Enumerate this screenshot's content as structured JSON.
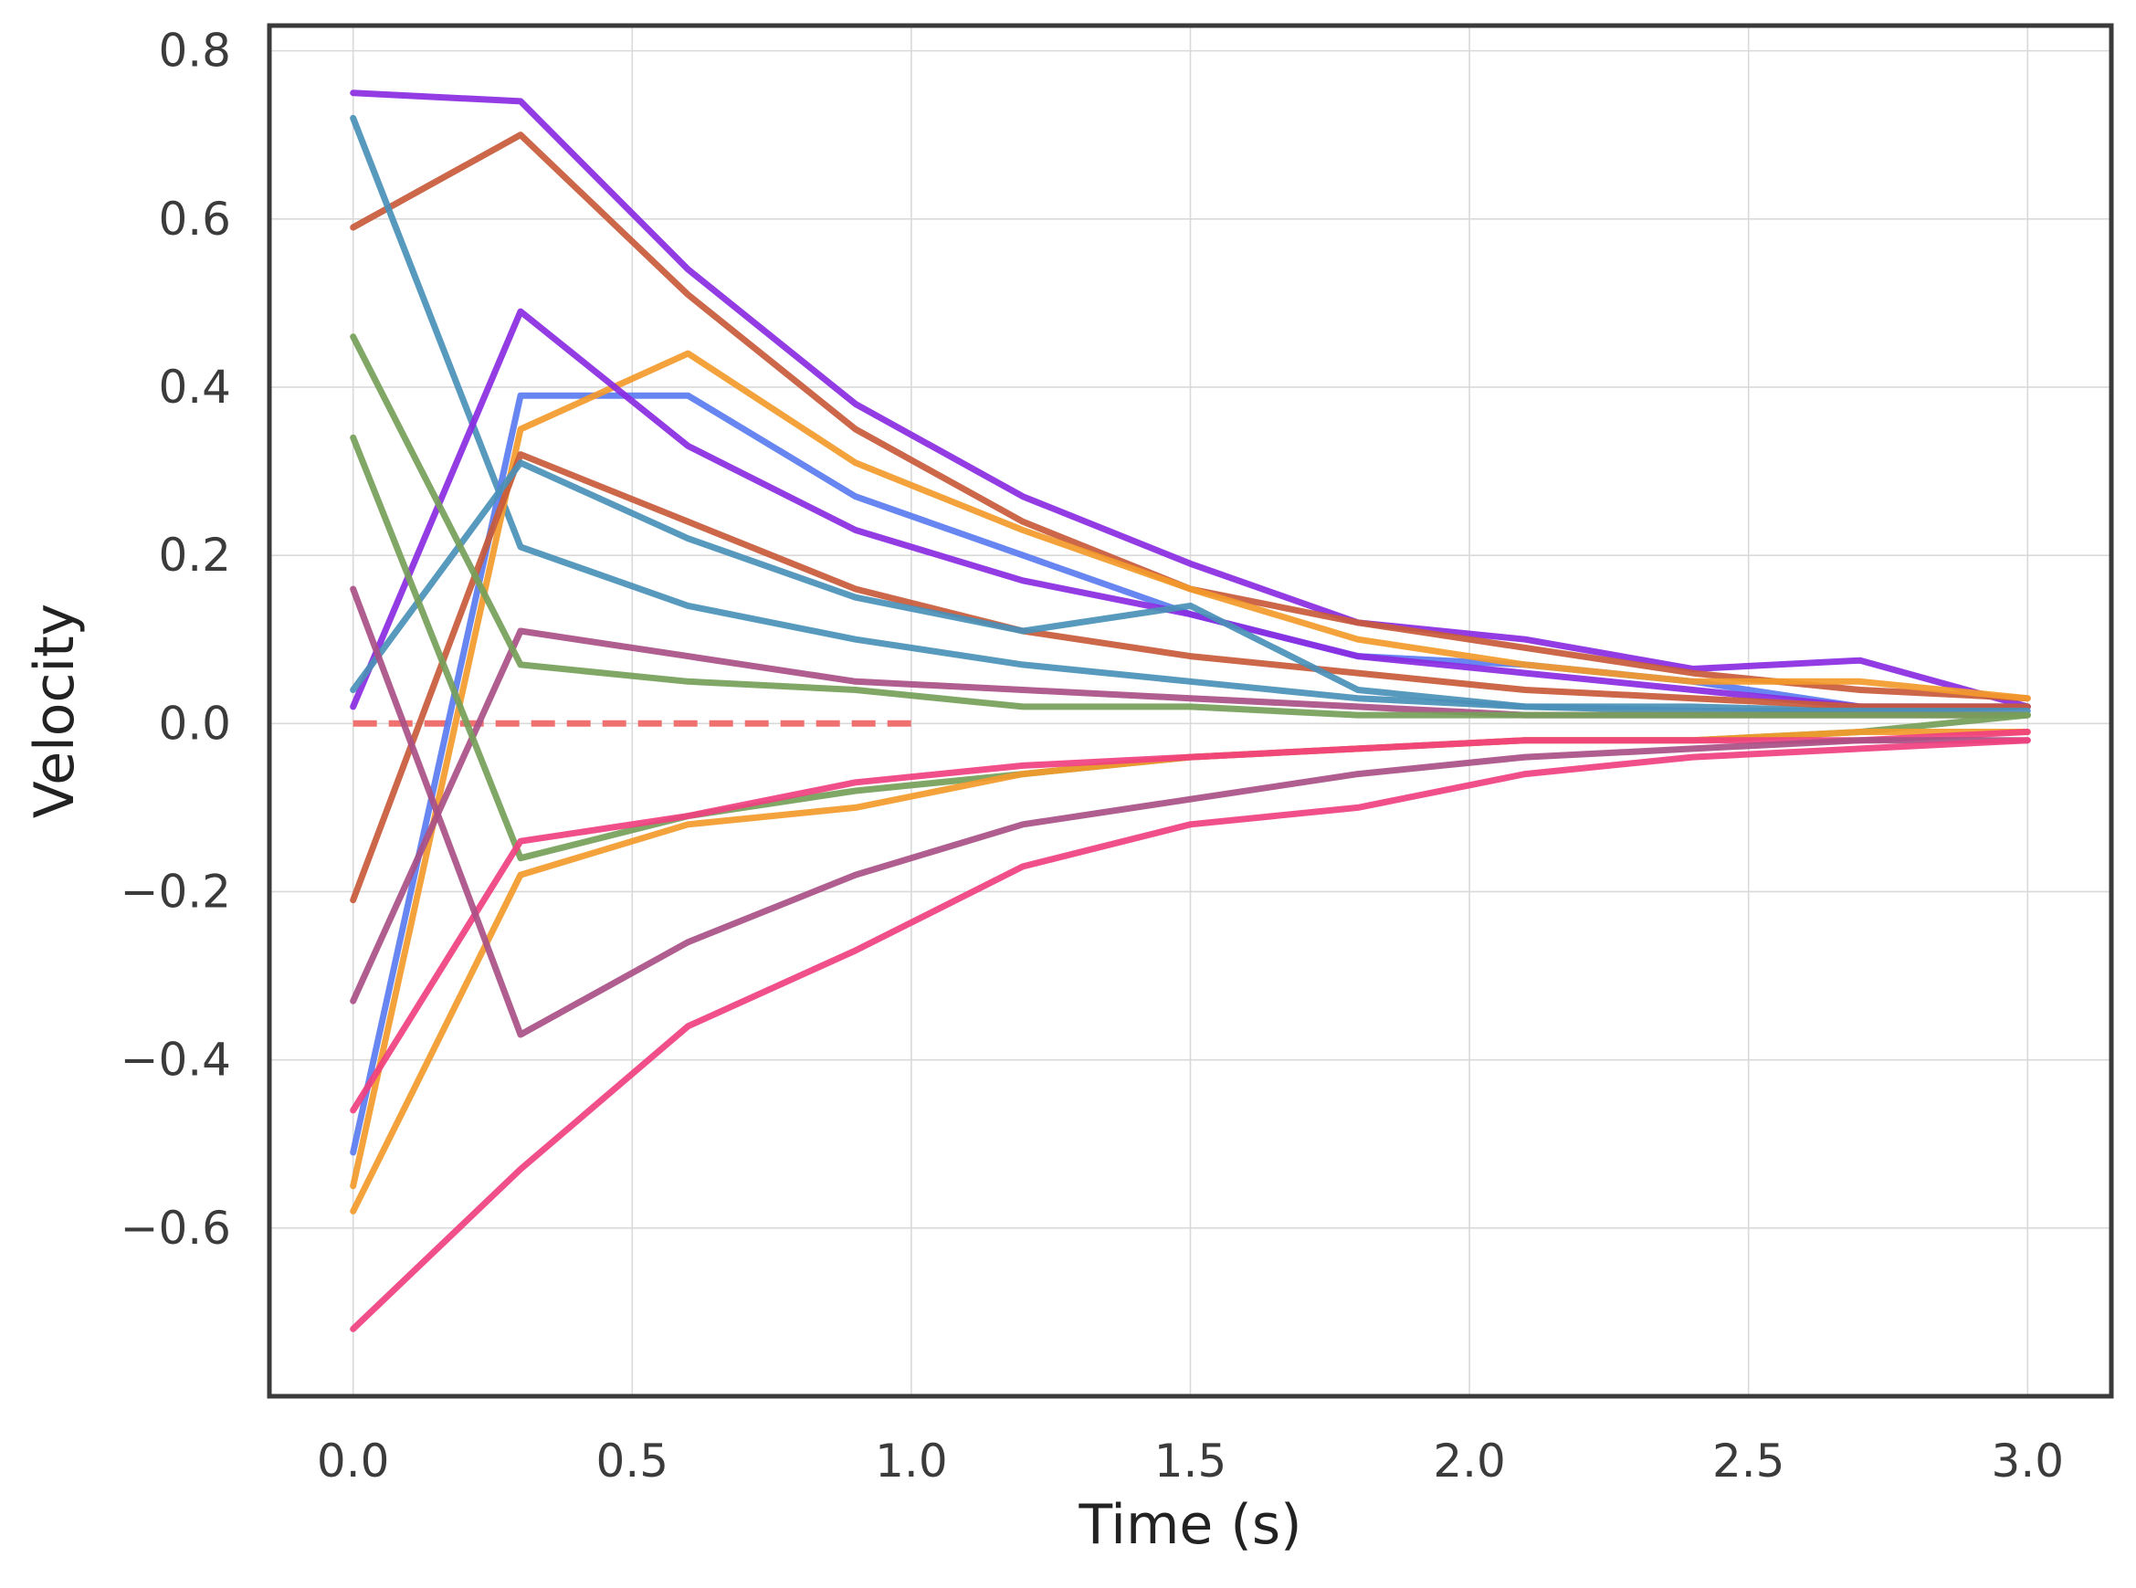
{
  "chart_data": {
    "type": "line",
    "title": "",
    "xlabel": "Time (s)",
    "ylabel": "Velocity",
    "xlim": [
      -0.15,
      3.15
    ],
    "ylim": [
      -0.8,
      0.83
    ],
    "xticks": [
      0.0,
      0.5,
      1.0,
      1.5,
      2.0,
      2.5,
      3.0
    ],
    "xtick_labels": [
      "0.0",
      "0.5",
      "1.0",
      "1.5",
      "2.0",
      "2.5",
      "3.0"
    ],
    "yticks": [
      -0.6,
      -0.4,
      -0.2,
      0.0,
      0.2,
      0.4,
      0.6,
      0.8
    ],
    "ytick_labels": [
      "−0.6",
      "−0.4",
      "−0.2",
      "0.0",
      "0.2",
      "0.4",
      "0.6",
      "0.8"
    ],
    "grid": true,
    "legend": "none",
    "x": [
      0.0,
      0.3,
      0.6,
      0.9,
      1.2,
      1.5,
      1.8,
      2.1,
      2.4,
      2.7,
      3.0
    ],
    "reference_line": {
      "x": [
        0.0,
        1.0
      ],
      "y": [
        0.0,
        0.0
      ],
      "color": "#f07070",
      "style": "dashed"
    },
    "series": [
      {
        "color": "#8a2be2",
        "values": [
          0.75,
          0.74,
          0.54,
          0.38,
          0.27,
          0.19,
          0.12,
          0.1,
          0.065,
          0.075,
          0.02
        ]
      },
      {
        "color": "#c85a3a",
        "values": [
          0.59,
          0.7,
          0.51,
          0.35,
          0.24,
          0.16,
          0.12,
          0.09,
          0.06,
          0.04,
          0.03
        ]
      },
      {
        "color": "#4a90b8",
        "values": [
          0.72,
          0.21,
          0.14,
          0.1,
          0.07,
          0.05,
          0.03,
          0.02,
          0.02,
          0.015,
          0.02
        ]
      },
      {
        "color": "#5b7cf0",
        "values": [
          -0.51,
          0.39,
          0.39,
          0.27,
          0.2,
          0.13,
          0.08,
          0.07,
          0.05,
          0.02,
          0.02
        ]
      },
      {
        "color": "#f39a2b",
        "values": [
          -0.55,
          0.35,
          0.44,
          0.31,
          0.23,
          0.16,
          0.1,
          0.07,
          0.05,
          0.05,
          0.03
        ]
      },
      {
        "color": "#8a2be2",
        "values": [
          0.02,
          0.49,
          0.33,
          0.23,
          0.17,
          0.13,
          0.08,
          0.06,
          0.04,
          0.02,
          0.02
        ]
      },
      {
        "color": "#c85a3a",
        "values": [
          -0.21,
          0.32,
          0.24,
          0.16,
          0.11,
          0.08,
          0.06,
          0.04,
          0.03,
          0.02,
          0.02
        ]
      },
      {
        "color": "#4a90b8",
        "values": [
          0.04,
          0.31,
          0.22,
          0.15,
          0.11,
          0.14,
          0.04,
          0.02,
          0.015,
          0.015,
          0.015
        ]
      },
      {
        "color": "#a94f86",
        "values": [
          -0.33,
          0.11,
          0.08,
          0.05,
          0.04,
          0.03,
          0.02,
          0.01,
          0.01,
          0.01,
          0.01
        ]
      },
      {
        "color": "#76a05a",
        "values": [
          0.46,
          0.07,
          0.05,
          0.04,
          0.02,
          0.02,
          0.01,
          0.01,
          0.01,
          0.01,
          0.01
        ]
      },
      {
        "color": "#76a05a",
        "values": [
          0.34,
          -0.16,
          -0.11,
          -0.08,
          -0.06,
          -0.04,
          -0.03,
          -0.02,
          -0.02,
          -0.01,
          0.01
        ]
      },
      {
        "color": "#f39a2b",
        "values": [
          -0.58,
          -0.18,
          -0.12,
          -0.1,
          -0.06,
          -0.04,
          -0.03,
          -0.02,
          -0.02,
          -0.01,
          -0.01
        ]
      },
      {
        "color": "#f0407f",
        "values": [
          -0.46,
          -0.14,
          -0.11,
          -0.07,
          -0.05,
          -0.04,
          -0.03,
          -0.02,
          -0.02,
          -0.02,
          -0.01
        ]
      },
      {
        "color": "#a94f86",
        "values": [
          0.16,
          -0.37,
          -0.26,
          -0.18,
          -0.12,
          -0.09,
          -0.06,
          -0.04,
          -0.03,
          -0.02,
          -0.02
        ]
      },
      {
        "color": "#f0407f",
        "values": [
          -0.72,
          -0.53,
          -0.36,
          -0.27,
          -0.17,
          -0.12,
          -0.1,
          -0.06,
          -0.04,
          -0.03,
          -0.02
        ]
      }
    ]
  }
}
